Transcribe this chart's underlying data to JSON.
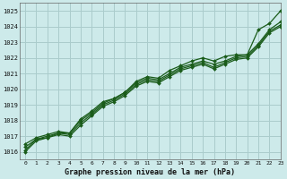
{
  "title": "Graphe pression niveau de la mer (hPa)",
  "bg_color": "#cdeaea",
  "grid_color": "#aacccc",
  "line_color": "#1a5c1a",
  "xlim": [
    -0.5,
    23
  ],
  "ylim": [
    1015.5,
    1025.5
  ],
  "yticks": [
    1016,
    1017,
    1018,
    1019,
    1020,
    1021,
    1022,
    1023,
    1024,
    1025
  ],
  "xticks": [
    0,
    1,
    2,
    3,
    4,
    5,
    6,
    7,
    8,
    9,
    10,
    11,
    12,
    13,
    14,
    15,
    16,
    17,
    18,
    19,
    20,
    21,
    22,
    23
  ],
  "series": [
    [
      1016.5,
      1016.9,
      1017.1,
      1017.3,
      1017.2,
      1018.1,
      1018.6,
      1019.2,
      1019.4,
      1019.8,
      1020.5,
      1020.8,
      1020.7,
      1021.2,
      1021.5,
      1021.8,
      1022.0,
      1021.8,
      1022.1,
      1022.2,
      1022.2,
      1023.8,
      1024.2,
      1025.0
    ],
    [
      1016.3,
      1016.8,
      1017.0,
      1017.2,
      1017.2,
      1018.0,
      1018.5,
      1019.1,
      1019.4,
      1019.8,
      1020.4,
      1020.7,
      1020.6,
      1021.0,
      1021.4,
      1021.6,
      1021.8,
      1021.6,
      1021.8,
      1022.1,
      1022.2,
      1022.9,
      1023.8,
      1024.3
    ],
    [
      1016.1,
      1016.8,
      1016.9,
      1017.2,
      1017.1,
      1017.85,
      1018.4,
      1019.0,
      1019.3,
      1019.7,
      1020.3,
      1020.6,
      1020.5,
      1020.9,
      1021.3,
      1021.5,
      1021.7,
      1021.4,
      1021.7,
      1022.0,
      1022.1,
      1022.8,
      1023.7,
      1024.1
    ],
    [
      1016.0,
      1016.7,
      1016.9,
      1017.1,
      1017.0,
      1017.7,
      1018.3,
      1018.9,
      1019.2,
      1019.6,
      1020.2,
      1020.5,
      1020.4,
      1020.8,
      1021.2,
      1021.4,
      1021.6,
      1021.3,
      1021.6,
      1021.9,
      1022.0,
      1022.7,
      1023.6,
      1024.0
    ]
  ]
}
